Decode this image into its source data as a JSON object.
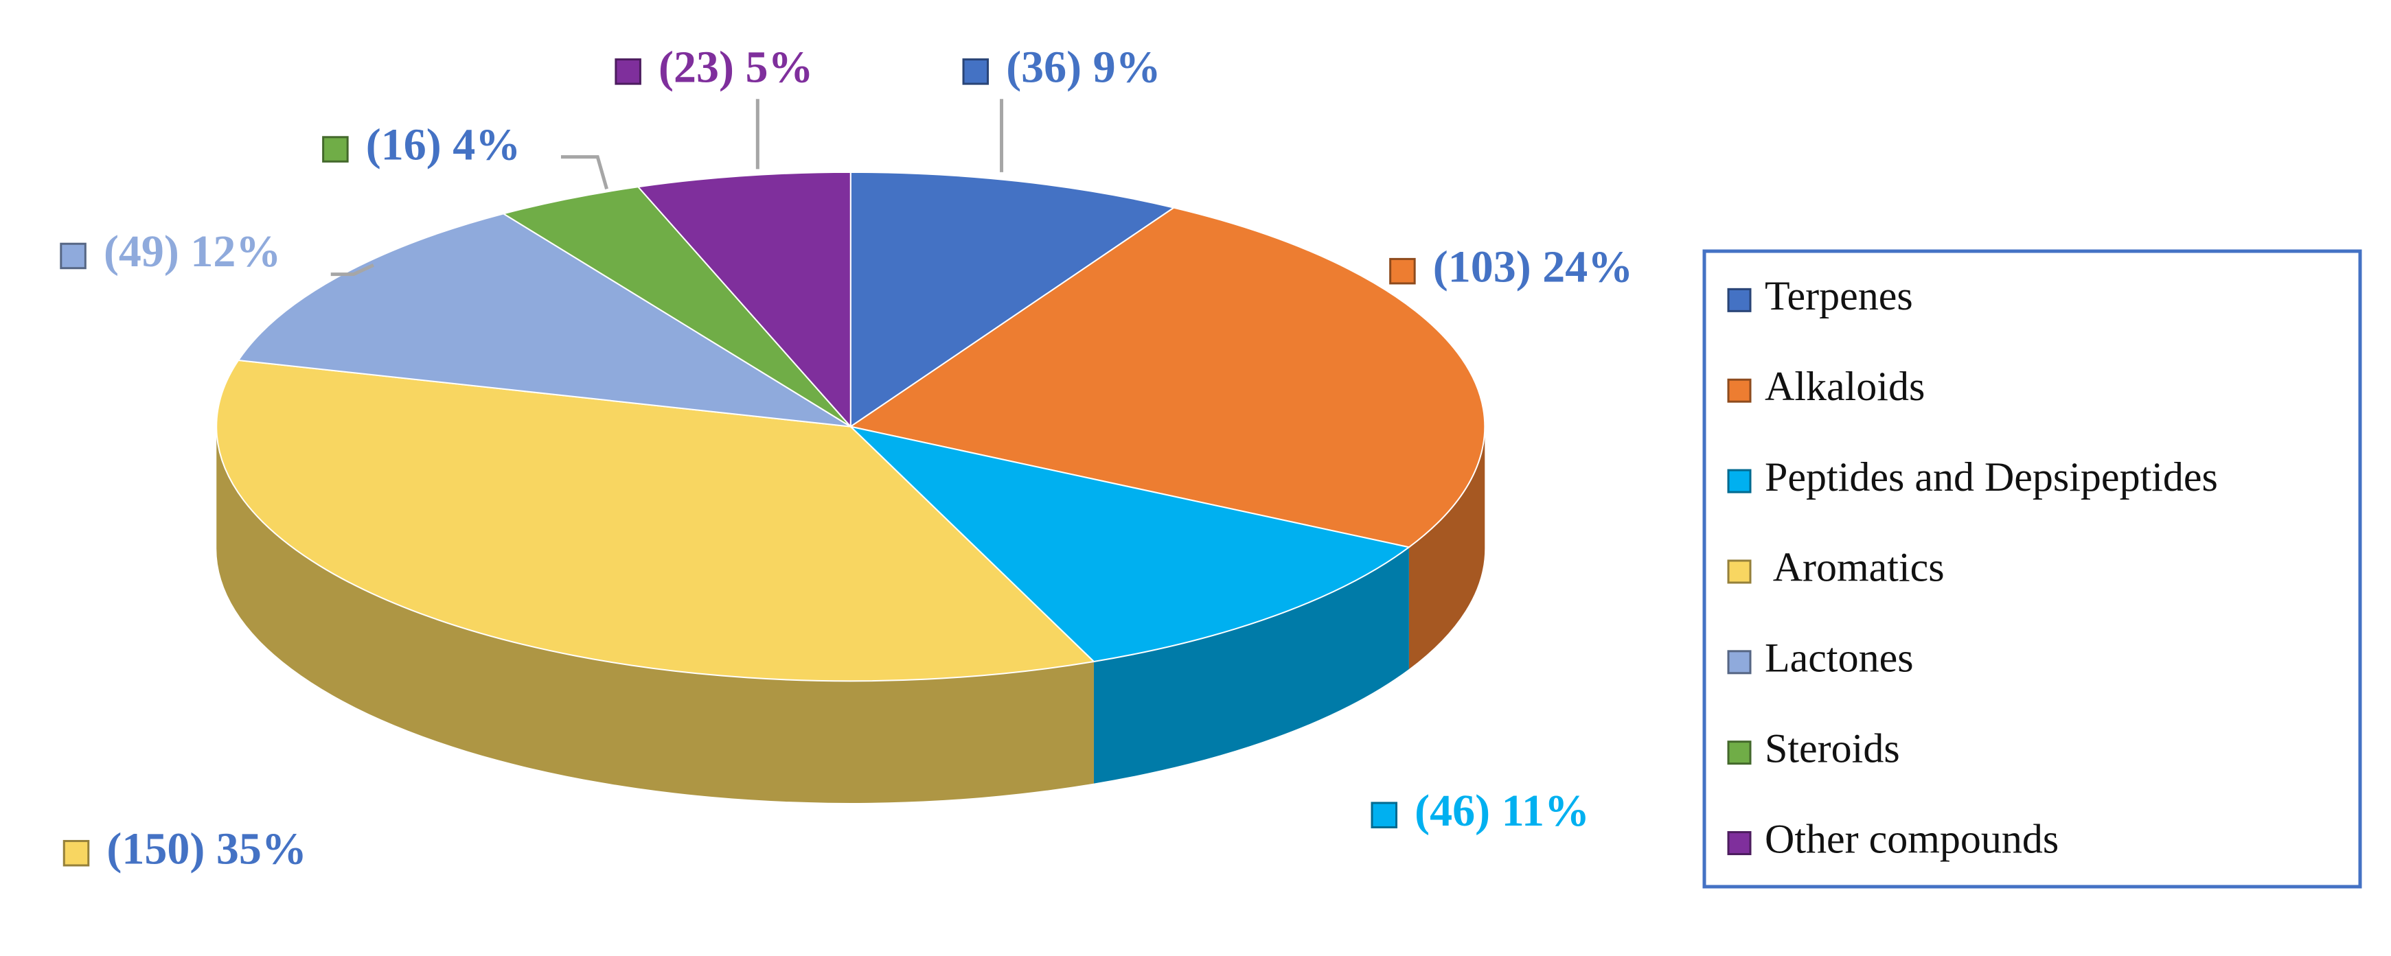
{
  "chart_data": {
    "type": "pie",
    "categories": [
      "Terpenes",
      "Alkaloids",
      "Peptides and Depsipeptides",
      " Aromatics",
      "Lactones",
      "Steroids",
      "Other compounds"
    ],
    "values": [
      36,
      103,
      46,
      150,
      49,
      16,
      23
    ],
    "value_labels": [
      "(36) 9%",
      "(103) 24%",
      "(46) 11%",
      "(150) 35%",
      "(49) 12%",
      "(16) 4%",
      "(23) 5%"
    ],
    "colors": [
      "#4472c4",
      "#ed7d31",
      "#00b0f0",
      "#f8d661",
      "#8faadc",
      "#70ad47",
      "#7f2f9c"
    ],
    "value_label_colors": [
      "#4472c4",
      "#4472c4",
      "#00b0f0",
      "#4472c4",
      "#8faadc",
      "#4472c4",
      "#7f2f9c"
    ],
    "legend": "right"
  }
}
